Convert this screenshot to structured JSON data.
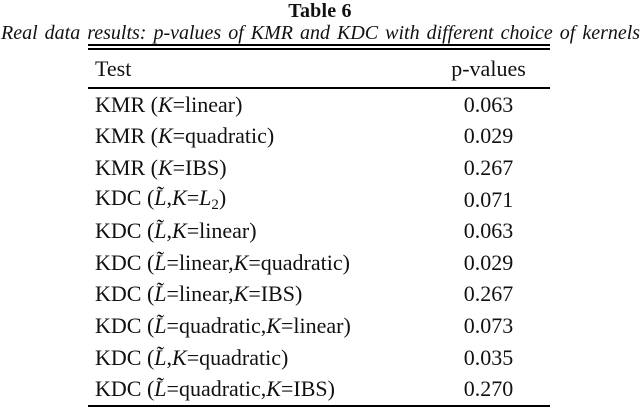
{
  "caption": {
    "label": "Table 6",
    "text": "Real data results: p-values of KMR and KDC with different choice of kernels"
  },
  "table": {
    "headers": [
      "Test",
      "p-values"
    ],
    "rows": [
      {
        "label": [
          {
            "t": "KMR ("
          },
          {
            "t": "K",
            "i": true
          },
          {
            "t": "=linear)"
          }
        ],
        "value": "0.063"
      },
      {
        "label": [
          {
            "t": "KMR ("
          },
          {
            "t": "K",
            "i": true
          },
          {
            "t": "=quadratic)"
          }
        ],
        "value": "0.029"
      },
      {
        "label": [
          {
            "t": "KMR ("
          },
          {
            "t": "K",
            "i": true
          },
          {
            "t": "=IBS)"
          }
        ],
        "value": "0.267"
      },
      {
        "label": [
          {
            "t": "KDC ("
          },
          {
            "t": "L̃",
            "i": true
          },
          {
            "t": ","
          },
          {
            "t": "K",
            "i": true
          },
          {
            "t": "="
          },
          {
            "t": "L",
            "i": true
          },
          {
            "t": "2",
            "sub": true
          },
          {
            "t": ")"
          }
        ],
        "value": "0.071"
      },
      {
        "label": [
          {
            "t": "KDC ("
          },
          {
            "t": "L̃",
            "i": true
          },
          {
            "t": ","
          },
          {
            "t": "K",
            "i": true
          },
          {
            "t": "=linear)"
          }
        ],
        "value": "0.063"
      },
      {
        "label": [
          {
            "t": "KDC ("
          },
          {
            "t": "L̃",
            "i": true
          },
          {
            "t": "=linear,"
          },
          {
            "t": "K",
            "i": true
          },
          {
            "t": "=quadratic)"
          }
        ],
        "value": "0.029"
      },
      {
        "label": [
          {
            "t": "KDC ("
          },
          {
            "t": "L̃",
            "i": true
          },
          {
            "t": "=linear,"
          },
          {
            "t": "K",
            "i": true
          },
          {
            "t": "=IBS)"
          }
        ],
        "value": "0.267"
      },
      {
        "label": [
          {
            "t": "KDC ("
          },
          {
            "t": "L̃",
            "i": true
          },
          {
            "t": "=quadratic,"
          },
          {
            "t": "K",
            "i": true
          },
          {
            "t": "=linear)"
          }
        ],
        "value": "0.073"
      },
      {
        "label": [
          {
            "t": "KDC ("
          },
          {
            "t": "L̃",
            "i": true
          },
          {
            "t": ","
          },
          {
            "t": "K",
            "i": true
          },
          {
            "t": "=quadratic)"
          }
        ],
        "value": "0.035"
      },
      {
        "label": [
          {
            "t": "KDC ("
          },
          {
            "t": "L̃",
            "i": true
          },
          {
            "t": "=quadratic,"
          },
          {
            "t": "K",
            "i": true
          },
          {
            "t": "=IBS)"
          }
        ],
        "value": "0.270"
      }
    ]
  },
  "colors": {
    "text": "#111111",
    "background": "#ffffff",
    "rule": "#000000"
  }
}
